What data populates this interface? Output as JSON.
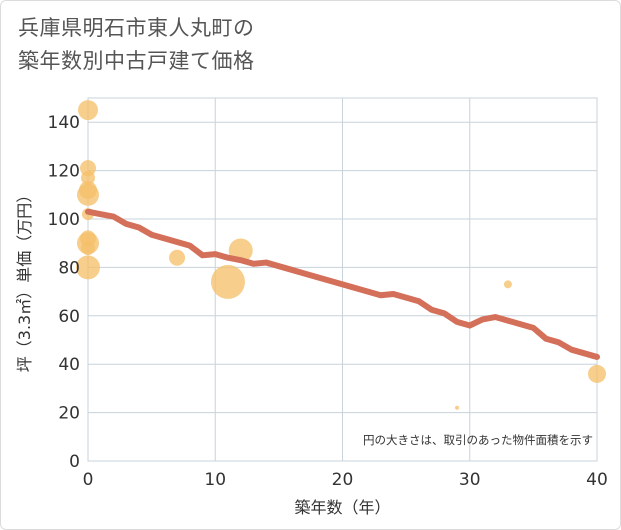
{
  "title_line1": "兵庫県明石市東人丸町の",
  "title_line2": "築年数別中古戸建て価格",
  "chart_data": {
    "type": "scatter",
    "title": "兵庫県明石市東人丸町の築年数別中古戸建て価格",
    "xlabel": "築年数（年）",
    "ylabel": "坪（3.3㎡）単価（万円）",
    "xlim": [
      0,
      40
    ],
    "ylim": [
      0,
      150
    ],
    "x_ticks": [
      0,
      10,
      20,
      30,
      40
    ],
    "y_ticks": [
      0,
      20,
      40,
      60,
      80,
      100,
      120,
      140
    ],
    "grid": true,
    "note": "円の大きさは、取引のあった物件面積を示す",
    "colors": {
      "bubble": "#f5c06a",
      "trend": "#d4705a",
      "grid": "#c8d3dc"
    },
    "scatter_points": [
      {
        "x": 0,
        "y": 145,
        "size": 10
      },
      {
        "x": 0,
        "y": 121,
        "size": 8
      },
      {
        "x": 0,
        "y": 117,
        "size": 7
      },
      {
        "x": 0,
        "y": 112,
        "size": 9
      },
      {
        "x": 0,
        "y": 110,
        "size": 11
      },
      {
        "x": 0,
        "y": 102,
        "size": 6
      },
      {
        "x": 0,
        "y": 92,
        "size": 8
      },
      {
        "x": 0,
        "y": 90,
        "size": 11
      },
      {
        "x": 0,
        "y": 88,
        "size": 7
      },
      {
        "x": 0,
        "y": 80,
        "size": 12
      },
      {
        "x": 7,
        "y": 84,
        "size": 8
      },
      {
        "x": 11,
        "y": 74,
        "size": 17
      },
      {
        "x": 12,
        "y": 87,
        "size": 12
      },
      {
        "x": 29,
        "y": 22,
        "size": 2
      },
      {
        "x": 33,
        "y": 73,
        "size": 4
      },
      {
        "x": 40,
        "y": 36,
        "size": 9
      }
    ],
    "trend_line": {
      "x": [
        0,
        1,
        2,
        3,
        4,
        5,
        6,
        7,
        8,
        9,
        10,
        11,
        12,
        13,
        14,
        15,
        16,
        17,
        18,
        19,
        20,
        21,
        22,
        23,
        24,
        25,
        26,
        27,
        28,
        29,
        30,
        31,
        32,
        33,
        34,
        35,
        36,
        37,
        38,
        39,
        40
      ],
      "y": [
        103,
        102,
        101,
        98,
        96.5,
        93.5,
        92,
        90.5,
        89,
        85,
        85.5,
        84,
        83,
        81.5,
        82,
        80.5,
        79,
        77.5,
        76,
        74.5,
        73,
        71.5,
        70,
        68.5,
        69,
        67.5,
        66,
        62.5,
        61,
        57.5,
        56,
        58.5,
        59.5,
        58,
        56.5,
        55,
        50.5,
        49,
        46,
        44.5,
        43
      ]
    }
  }
}
